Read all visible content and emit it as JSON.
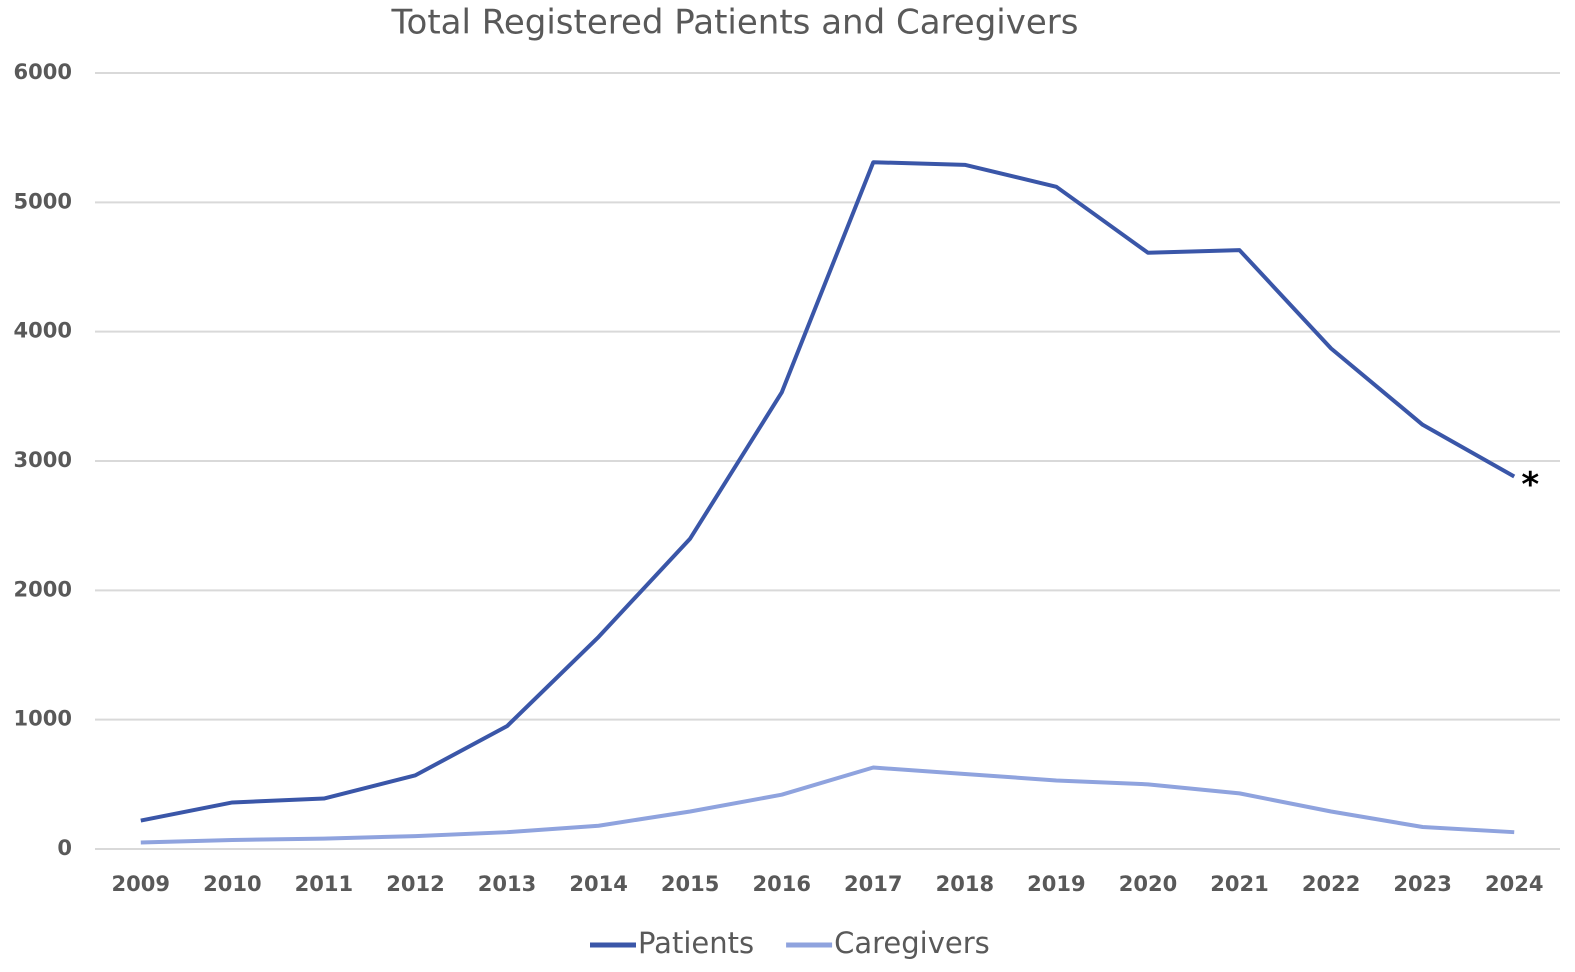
{
  "chart_data": {
    "type": "line",
    "title": "Total Registered Patients and Caregivers",
    "categories": [
      "2009",
      "2010",
      "2011",
      "2012",
      "2013",
      "2014",
      "2015",
      "2016",
      "2017",
      "2018",
      "2019",
      "2020",
      "2021",
      "2022",
      "2023",
      "2024"
    ],
    "series": [
      {
        "name": "Patients",
        "color": "#3a56a8",
        "values": [
          220,
          360,
          390,
          570,
          950,
          1640,
          2400,
          3530,
          5310,
          5290,
          5120,
          4610,
          4630,
          3870,
          3280,
          2880
        ]
      },
      {
        "name": "Caregivers",
        "color": "#8fa3de",
        "values": [
          50,
          70,
          80,
          100,
          130,
          180,
          290,
          420,
          630,
          580,
          530,
          500,
          430,
          290,
          170,
          130
        ]
      }
    ],
    "annotation": "*",
    "ylim": [
      0,
      6000
    ],
    "yticks": [
      0,
      1000,
      2000,
      3000,
      4000,
      5000,
      6000
    ],
    "grid": true,
    "legend": "bottom"
  }
}
